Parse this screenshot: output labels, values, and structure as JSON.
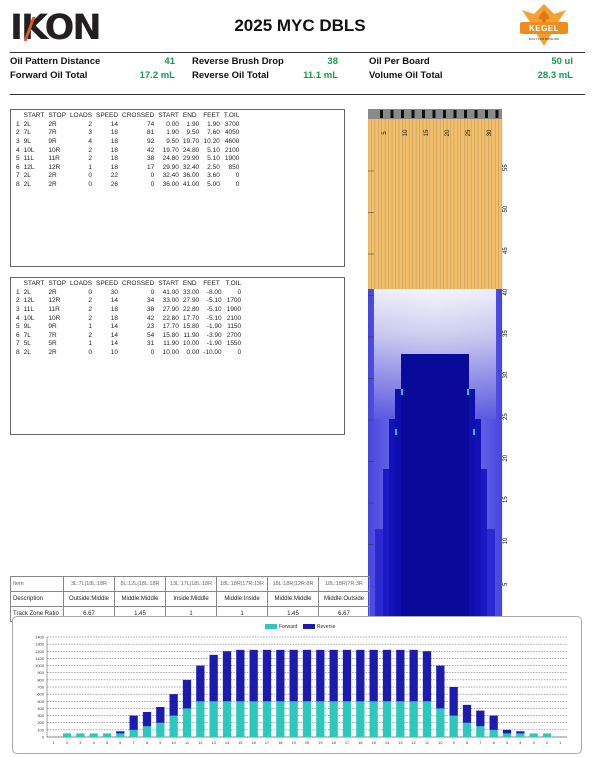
{
  "header": {
    "brand_left": "IKON",
    "title": "2025 MYC DBLS",
    "brand_right": "KEGEL",
    "brand_right_tagline": "BUILT FOR BOWLING"
  },
  "stats": [
    {
      "label": "Oil Pattern Distance",
      "value": "41"
    },
    {
      "label": "Reverse Brush Drop",
      "value": "38"
    },
    {
      "label": "Oil Per Board",
      "value": "50 ul"
    },
    {
      "label": "Forward Oil Total",
      "value": "17.2 mL"
    },
    {
      "label": "Reverse Oil Total",
      "value": "11.1 mL"
    },
    {
      "label": "Volume Oil Total",
      "value": "28.3 mL"
    }
  ],
  "forward_table": {
    "headers": [
      "",
      "START",
      "STOP",
      "LOADS",
      "SPEED",
      "CROSSED",
      "START",
      "END",
      "FEET",
      "T.OIL"
    ],
    "rows": [
      [
        "1",
        "2L",
        "2R",
        "2",
        "14",
        "74",
        "0.00",
        "1.90",
        "1.90",
        "3700"
      ],
      [
        "2",
        "7L",
        "7R",
        "3",
        "18",
        "81",
        "1.90",
        "9.50",
        "7.60",
        "4050"
      ],
      [
        "3",
        "9L",
        "9R",
        "4",
        "18",
        "92",
        "9.50",
        "19.70",
        "10.20",
        "4600"
      ],
      [
        "4",
        "10L",
        "10R",
        "2",
        "18",
        "42",
        "19.70",
        "24.80",
        "5.10",
        "2100"
      ],
      [
        "5",
        "11L",
        "11R",
        "2",
        "18",
        "38",
        "24.80",
        "29.90",
        "5.10",
        "1900"
      ],
      [
        "6",
        "12L",
        "12R",
        "1",
        "18",
        "17",
        "29.90",
        "32.40",
        "2.50",
        "850"
      ],
      [
        "7",
        "2L",
        "2R",
        "0",
        "22",
        "0",
        "32.40",
        "36.00",
        "3.60",
        "0"
      ],
      [
        "8",
        "2L",
        "2R",
        "0",
        "26",
        "0",
        "36.00",
        "41.00",
        "5.00",
        "0"
      ]
    ]
  },
  "reverse_table": {
    "headers": [
      "",
      "START",
      "STOP",
      "LOADS",
      "SPEED",
      "CROSSED",
      "START",
      "END",
      "FEET",
      "T.OIL"
    ],
    "rows": [
      [
        "1",
        "2L",
        "2R",
        "0",
        "30",
        "0",
        "41.00",
        "33.00",
        "-8.00",
        "0"
      ],
      [
        "2",
        "12L",
        "12R",
        "2",
        "14",
        "34",
        "33.00",
        "27.90",
        "-5.10",
        "1700"
      ],
      [
        "3",
        "11L",
        "11R",
        "2",
        "18",
        "38",
        "27.90",
        "22.80",
        "-5.10",
        "1900"
      ],
      [
        "4",
        "10L",
        "10R",
        "2",
        "18",
        "42",
        "22.80",
        "17.70",
        "-5.10",
        "2100"
      ],
      [
        "5",
        "9L",
        "9R",
        "1",
        "14",
        "23",
        "17.70",
        "15.80",
        "-1.90",
        "1150"
      ],
      [
        "6",
        "7L",
        "7R",
        "2",
        "14",
        "54",
        "15.80",
        "11.90",
        "-3.90",
        "2700"
      ],
      [
        "7",
        "5L",
        "5R",
        "1",
        "14",
        "31",
        "11.90",
        "10.00",
        "-1.90",
        "1550"
      ],
      [
        "8",
        "2L",
        "2R",
        "0",
        "10",
        "0",
        "10.00",
        "0.00",
        "-10.00",
        "0"
      ]
    ]
  },
  "zone_table": {
    "row_labels": [
      "Item",
      "Description",
      "Track Zone Ratio"
    ],
    "columns": [
      {
        "item": "3L:7L|18L:18R",
        "description": "Outside:Middle",
        "ratio": "6.67"
      },
      {
        "item": "8L:12L|18L:18R",
        "description": "Middle:Middle",
        "ratio": "1.45"
      },
      {
        "item": "13L:17L|18L:18R",
        "description": "Inside:Middle",
        "ratio": "1"
      },
      {
        "item": "18L:18R|17R:13R",
        "description": "Middle:Inside",
        "ratio": "1"
      },
      {
        "item": "18L:18R|12R:8R",
        "description": "Middle:Middle",
        "ratio": "1.45"
      },
      {
        "item": "18L:18R|7R:3R",
        "description": "Middle:Outside",
        "ratio": "6.67"
      }
    ]
  },
  "pattern_graph": {
    "top_tick_labels": [
      "5",
      "10",
      "15",
      "20",
      "25",
      "30"
    ],
    "distance_labels": [
      "55",
      "50",
      "45",
      "40",
      "35",
      "30",
      "25",
      "20",
      "15",
      "10",
      "5"
    ],
    "colors": {
      "lane": "#f4bf6a",
      "oil_dark": "#0a0a9a",
      "oil_mid": "#3c3cd6",
      "fade": "#e6e6f4",
      "cyan": "#28c8c0"
    }
  },
  "chart_data": {
    "type": "bar",
    "stacked": true,
    "categories": [
      "1",
      "2",
      "3",
      "4",
      "5",
      "6",
      "7",
      "8",
      "9",
      "10",
      "11",
      "12",
      "13",
      "14",
      "15",
      "16",
      "17",
      "18",
      "19",
      "20",
      "19",
      "18",
      "17",
      "16",
      "15",
      "14",
      "13",
      "12",
      "11",
      "10",
      "9",
      "8",
      "7",
      "6",
      "5",
      "4",
      "3",
      "2",
      "1"
    ],
    "series": [
      {
        "name": "Forward",
        "color": "#2cc7bd",
        "values": [
          0,
          50,
          50,
          50,
          50,
          50,
          100,
          150,
          200,
          300,
          400,
          500,
          500,
          500,
          500,
          500,
          500,
          500,
          500,
          500,
          500,
          500,
          500,
          500,
          500,
          500,
          500,
          500,
          500,
          400,
          300,
          200,
          150,
          100,
          50,
          50,
          50,
          50,
          0
        ]
      },
      {
        "name": "Reverse",
        "color": "#1b1bb0",
        "values": [
          0,
          0,
          0,
          0,
          0,
          30,
          200,
          200,
          220,
          300,
          400,
          500,
          650,
          700,
          720,
          720,
          720,
          720,
          720,
          720,
          720,
          720,
          720,
          720,
          720,
          720,
          720,
          720,
          700,
          600,
          400,
          250,
          220,
          200,
          50,
          30,
          0,
          0,
          0
        ]
      }
    ],
    "ylim": [
      0,
      1400
    ],
    "yticks": [
      "0",
      "100",
      "200",
      "300",
      "400",
      "500",
      "600",
      "700",
      "800",
      "900",
      "1000",
      "1100",
      "1200",
      "1300",
      "1400"
    ],
    "legend_position": "top-center",
    "grid": true
  }
}
